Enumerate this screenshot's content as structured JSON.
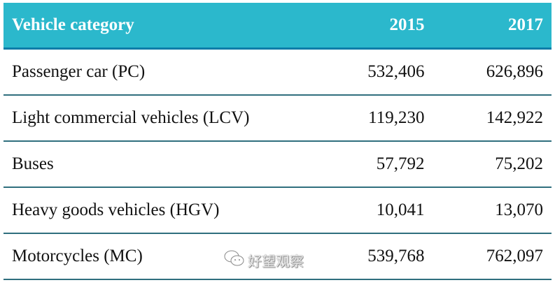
{
  "table": {
    "headers": [
      "Vehicle category",
      "2015",
      "2017"
    ],
    "rows": [
      [
        "Passenger car (PC)",
        "532,406",
        "626,896"
      ],
      [
        "Light commercial vehicles (LCV)",
        "119,230",
        "142,922"
      ],
      [
        "Buses",
        "57,792",
        "75,202"
      ],
      [
        "Heavy goods vehicles (HGV)",
        "10,041",
        "13,070"
      ],
      [
        "Motorcycles (MC)",
        "539,768",
        "762,097"
      ]
    ]
  },
  "watermark": {
    "text": "好望观察",
    "icon": "wechat-icon"
  }
}
